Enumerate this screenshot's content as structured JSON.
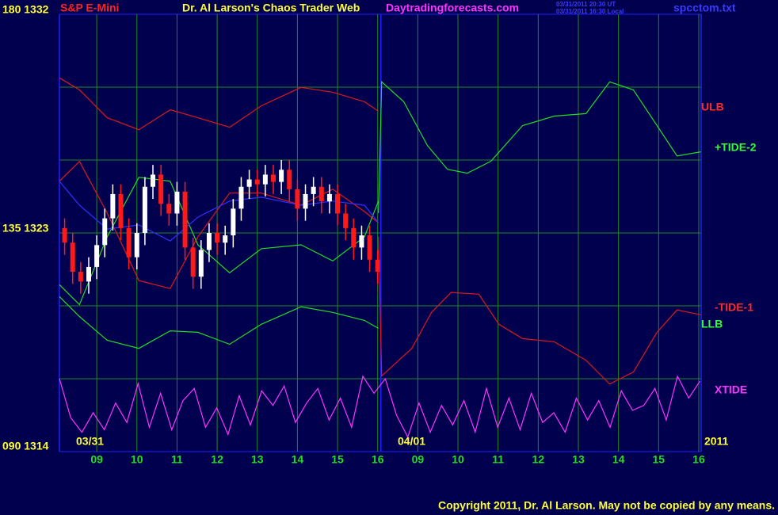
{
  "chart_data": {
    "type": "candlestick",
    "title": "S&P E-Mini",
    "subtitle": "Dr. Al Larson's Chaos Trader Web",
    "site": "Daytradingforecasts.com",
    "timestamps": [
      "03/31/2011 20:30 UT",
      "03/31/2011 16:30 Local"
    ],
    "file": "spcctom.txt",
    "copyright": "Copyright 2011, Dr. Al Larson. May not be copied by any means.",
    "dates": [
      "03/31",
      "04/01",
      "2011"
    ],
    "annotations": [
      {
        "text": "ULB",
        "color": "#ff2a2a"
      },
      {
        "text": "+TIDE-2",
        "color": "#33ff33"
      },
      {
        "text": "-TIDE-1",
        "color": "#ff2a2a"
      },
      {
        "text": "LLB",
        "color": "#33ff33"
      },
      {
        "text": "XTIDE",
        "color": "#ff33ff"
      }
    ],
    "xlim": [
      -0.93,
      15.06
    ],
    "xticks": [
      {
        "value": 0,
        "label": "09"
      },
      {
        "value": 1,
        "label": "10"
      },
      {
        "value": 2,
        "label": "11"
      },
      {
        "value": 3,
        "label": "12"
      },
      {
        "value": 4,
        "label": "13"
      },
      {
        "value": 5,
        "label": "14"
      },
      {
        "value": 6,
        "label": "15"
      },
      {
        "value": 7,
        "label": "16"
      },
      {
        "value": 8,
        "label": "09"
      },
      {
        "value": 9,
        "label": "10"
      },
      {
        "value": 10,
        "label": "11"
      },
      {
        "value": 11,
        "label": "12"
      },
      {
        "value": 12,
        "label": "13"
      },
      {
        "value": 13,
        "label": "14"
      },
      {
        "value": 14,
        "label": "15"
      },
      {
        "value": 15,
        "label": "16"
      }
    ],
    "day_break": 7.08,
    "ylim": [
      1314,
      1332
    ],
    "yticks": [
      {
        "value": 1332,
        "label": "180 1332"
      },
      {
        "value": 1323,
        "label": "135 1323"
      },
      {
        "value": 1314,
        "label": "090 1314"
      }
    ],
    "ygrid": [
      1317,
      1320,
      1326,
      1329
    ],
    "grid": true,
    "grid_color": "#1f8a1f",
    "border_color": "#2020ff",
    "up_color": "#ffffff",
    "down_color": "#ff1a1a",
    "candles": {
      "x": [
        -0.8,
        -0.6,
        -0.4,
        -0.2,
        0,
        0.2,
        0.4,
        0.6,
        0.8,
        1,
        1.2,
        1.4,
        1.6,
        1.8,
        2,
        2.2,
        2.4,
        2.6,
        2.8,
        3,
        3.2,
        3.4,
        3.6,
        3.8,
        4,
        4.2,
        4.4,
        4.6,
        4.8,
        5,
        5.2,
        5.4,
        5.6,
        5.8,
        6,
        6.2,
        6.4,
        6.6,
        6.8,
        7
      ],
      "open": [
        1323.2,
        1322.6,
        1321.4,
        1321.0,
        1321.6,
        1322.5,
        1323.6,
        1324.6,
        1323.2,
        1322.0,
        1323.0,
        1324.9,
        1325.4,
        1324.2,
        1323.8,
        1324.7,
        1322.4,
        1321.2,
        1322.3,
        1323.0,
        1322.6,
        1322.9,
        1324.0,
        1324.9,
        1325.2,
        1325.0,
        1325.4,
        1325.1,
        1325.6,
        1324.8,
        1324.0,
        1324.6,
        1324.9,
        1324.3,
        1324.6,
        1323.8,
        1323.2,
        1322.4,
        1322.9,
        1321.9
      ],
      "high": [
        1323.6,
        1323.0,
        1321.8,
        1322.0,
        1322.9,
        1324.0,
        1325.0,
        1325.0,
        1323.6,
        1323.4,
        1325.3,
        1325.8,
        1325.8,
        1324.6,
        1325.1,
        1325.1,
        1322.8,
        1322.7,
        1323.4,
        1323.4,
        1323.3,
        1324.4,
        1325.3,
        1325.6,
        1325.6,
        1325.8,
        1325.8,
        1326.0,
        1326.0,
        1325.2,
        1325.0,
        1325.3,
        1325.3,
        1325.0,
        1325.0,
        1324.2,
        1323.6,
        1323.3,
        1323.3,
        1322.3
      ],
      "low": [
        1322.1,
        1320.9,
        1320.5,
        1320.5,
        1321.1,
        1322.0,
        1323.1,
        1322.7,
        1321.5,
        1321.5,
        1322.5,
        1324.4,
        1323.7,
        1323.3,
        1323.3,
        1321.9,
        1320.7,
        1320.7,
        1321.8,
        1322.1,
        1322.1,
        1322.4,
        1323.5,
        1324.4,
        1324.5,
        1324.5,
        1324.6,
        1324.6,
        1324.3,
        1323.5,
        1323.5,
        1324.1,
        1323.8,
        1323.8,
        1323.3,
        1322.7,
        1321.9,
        1321.9,
        1321.4,
        1320.9
      ],
      "close": [
        1322.6,
        1321.4,
        1321.0,
        1321.6,
        1322.5,
        1323.6,
        1324.6,
        1323.2,
        1322.0,
        1323.0,
        1324.9,
        1325.4,
        1324.2,
        1323.8,
        1324.7,
        1322.4,
        1321.2,
        1322.3,
        1323.0,
        1322.6,
        1322.9,
        1324.0,
        1324.9,
        1325.2,
        1325.0,
        1325.4,
        1325.1,
        1325.6,
        1324.8,
        1324.0,
        1324.6,
        1324.9,
        1324.3,
        1324.6,
        1323.8,
        1323.2,
        1322.4,
        1322.9,
        1321.9,
        1321.4
      ]
    },
    "series": [
      {
        "color": "#e01818",
        "x": [
          -0.93,
          -0.43,
          0.26,
          1.05,
          1.83,
          2.52,
          3.31,
          4.1,
          5.09,
          5.88,
          6.67,
          7.02
        ],
        "values": [
          1329.38,
          1328.89,
          1327.74,
          1327.25,
          1328.07,
          1327.74,
          1327.35,
          1328.23,
          1328.99,
          1328.79,
          1328.4,
          1328.01
        ]
      },
      {
        "color": "#22dd22",
        "x": [
          -0.93,
          -0.43,
          0.26,
          1.05,
          1.83,
          2.52,
          3.31,
          4.1,
          5.09,
          5.88,
          6.67,
          7.02
        ],
        "values": [
          1320.38,
          1319.56,
          1318.58,
          1318.25,
          1318.97,
          1318.91,
          1318.42,
          1319.24,
          1319.96,
          1319.73,
          1319.4,
          1319.07
        ]
      },
      {
        "color": "#e01818",
        "x": [
          -0.93,
          -0.43,
          0.26,
          1.05,
          1.83,
          2.52,
          3.31,
          4.1,
          5.09,
          5.88,
          6.67,
          7.02
        ],
        "values": [
          1325.13,
          1325.94,
          1323.82,
          1321.04,
          1320.71,
          1322.84,
          1324.64,
          1324.64,
          1324.14,
          1324.8,
          1323.88,
          1323.42
        ]
      },
      {
        "color": "#22dd22",
        "x": [
          -0.93,
          -0.43,
          0.26,
          1.05,
          1.83,
          2.52,
          3.31,
          4.1,
          5.09,
          5.88,
          6.67,
          7.02
        ],
        "values": [
          1320.87,
          1320.05,
          1322.84,
          1325.29,
          1325.13,
          1322.51,
          1321.36,
          1322.35,
          1322.51,
          1321.85,
          1322.84,
          1324.31
        ]
      },
      {
        "color": "#3030ff",
        "x": [
          -0.93,
          -0.43,
          0.26,
          1.05,
          1.83,
          2.52,
          3.31,
          4.1,
          5.09,
          5.88,
          6.67,
          7.02
        ],
        "values": [
          1325.13,
          1324.14,
          1323.16,
          1323.33,
          1322.67,
          1323.65,
          1324.31,
          1324.47,
          1324.14,
          1324.31,
          1324.14,
          1323.42
        ]
      },
      {
        "color": "#22dd22",
        "x": [
          7.02,
          7.1,
          7.65,
          8.24,
          8.74,
          9.23,
          9.82,
          10.61,
          11.4,
          12.19,
          12.78,
          13.37,
          13.96,
          14.46,
          15.05
        ],
        "values": [
          1323.82,
          1329.22,
          1328.4,
          1326.6,
          1325.62,
          1325.46,
          1325.95,
          1327.42,
          1327.81,
          1327.91,
          1329.22,
          1328.89,
          1327.42,
          1326.17,
          1326.34
        ]
      },
      {
        "color": "#e01818",
        "x": [
          7.02,
          7.1,
          7.85,
          8.34,
          8.83,
          9.52,
          10.02,
          10.61,
          11.4,
          12.19,
          12.78,
          13.37,
          13.96,
          14.46,
          15.05
        ],
        "values": [
          1322.84,
          1317.11,
          1318.25,
          1319.73,
          1320.55,
          1320.48,
          1319.24,
          1318.65,
          1318.52,
          1317.76,
          1316.78,
          1317.27,
          1318.91,
          1319.83,
          1319.63
        ]
      },
      {
        "color": "#ff33ff",
        "x": [
          -0.93,
          -0.65,
          -0.37,
          -0.09,
          0.19,
          0.47,
          0.75,
          1.03,
          1.31,
          1.59,
          1.87,
          2.15,
          2.43,
          2.71,
          2.99,
          3.27,
          3.55,
          3.83,
          4.11,
          4.39,
          4.67,
          4.95,
          5.23,
          5.51,
          5.79,
          6.07,
          6.35,
          6.63,
          6.91,
          7.19,
          7.47,
          7.75,
          8.03,
          8.31,
          8.59,
          8.87,
          9.15,
          9.43,
          9.71,
          9.99,
          10.27,
          10.55,
          10.83,
          11.11,
          11.39,
          11.67,
          11.95,
          12.23,
          12.51,
          12.79,
          13.07,
          13.35,
          13.63,
          13.91,
          14.19,
          14.47,
          14.75,
          15.03
        ],
        "values": [
          1317.0,
          1315.4,
          1314.8,
          1315.6,
          1314.9,
          1316.0,
          1315.2,
          1316.8,
          1315.0,
          1316.4,
          1314.9,
          1316.1,
          1316.6,
          1315.0,
          1315.8,
          1314.7,
          1316.3,
          1315.1,
          1316.5,
          1315.9,
          1316.7,
          1315.2,
          1316.0,
          1316.6,
          1315.3,
          1316.2,
          1315.0,
          1317.1,
          1316.4,
          1317.0,
          1315.5,
          1314.6,
          1316.0,
          1314.8,
          1315.9,
          1315.1,
          1316.1,
          1314.8,
          1316.6,
          1315.0,
          1316.2,
          1314.9,
          1316.4,
          1315.2,
          1315.6,
          1314.8,
          1316.2,
          1315.3,
          1316.1,
          1315.0,
          1316.5,
          1315.7,
          1315.9,
          1316.6,
          1315.3,
          1317.1,
          1316.2,
          1316.9
        ]
      }
    ]
  }
}
